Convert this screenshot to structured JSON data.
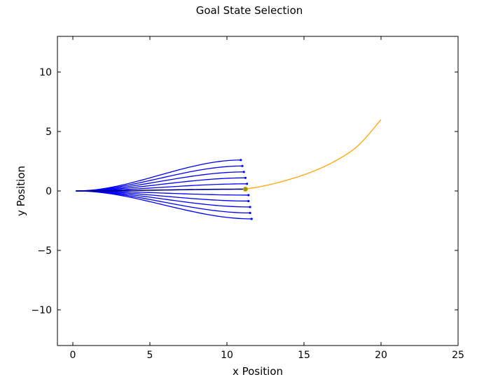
{
  "chart_data": {
    "type": "line",
    "title": "Goal State Selection",
    "xlabel": "x Position",
    "ylabel": "y Position",
    "xlim": [
      -1,
      25
    ],
    "ylim": [
      -13,
      13
    ],
    "xticks": [
      0,
      5,
      10,
      15,
      20,
      25
    ],
    "yticks": [
      -10,
      -5,
      0,
      5,
      10
    ],
    "ytick_labels": [
      "−10",
      "−5",
      "0",
      "5",
      "10"
    ],
    "grid": false,
    "colors": {
      "candidates": "#0000ff",
      "selected": "#000080",
      "goal_path": "#ffa500",
      "goal_point": "#999900"
    },
    "series": [
      {
        "role": "candidate",
        "start": [
          0.2,
          0.0
        ],
        "end": [
          10.9,
          2.6
        ]
      },
      {
        "role": "candidate",
        "start": [
          0.2,
          0.0
        ],
        "end": [
          11.0,
          2.1
        ]
      },
      {
        "role": "candidate",
        "start": [
          0.2,
          0.0
        ],
        "end": [
          11.1,
          1.6
        ]
      },
      {
        "role": "candidate",
        "start": [
          0.2,
          0.0
        ],
        "end": [
          11.2,
          1.1
        ]
      },
      {
        "role": "candidate",
        "start": [
          0.2,
          0.0
        ],
        "end": [
          11.3,
          0.6
        ]
      },
      {
        "role": "selected",
        "start": [
          0.2,
          0.0
        ],
        "end": [
          11.3,
          0.15
        ]
      },
      {
        "role": "candidate",
        "start": [
          0.2,
          0.0
        ],
        "end": [
          11.4,
          -0.35
        ]
      },
      {
        "role": "candidate",
        "start": [
          0.2,
          0.0
        ],
        "end": [
          11.4,
          -0.85
        ]
      },
      {
        "role": "candidate",
        "start": [
          0.2,
          0.0
        ],
        "end": [
          11.5,
          -1.35
        ]
      },
      {
        "role": "candidate",
        "start": [
          0.2,
          0.0
        ],
        "end": [
          11.5,
          -1.85
        ]
      },
      {
        "role": "candidate",
        "start": [
          0.2,
          0.0
        ],
        "end": [
          11.6,
          -2.35
        ]
      },
      {
        "role": "goal_path",
        "points": [
          [
            11.2,
            0.15
          ],
          [
            12.5,
            0.45
          ],
          [
            14.0,
            0.95
          ],
          [
            15.5,
            1.6
          ],
          [
            17.0,
            2.5
          ],
          [
            18.5,
            3.8
          ],
          [
            20.0,
            6.0
          ]
        ]
      }
    ],
    "goal_point": [
      11.2,
      0.15
    ]
  }
}
